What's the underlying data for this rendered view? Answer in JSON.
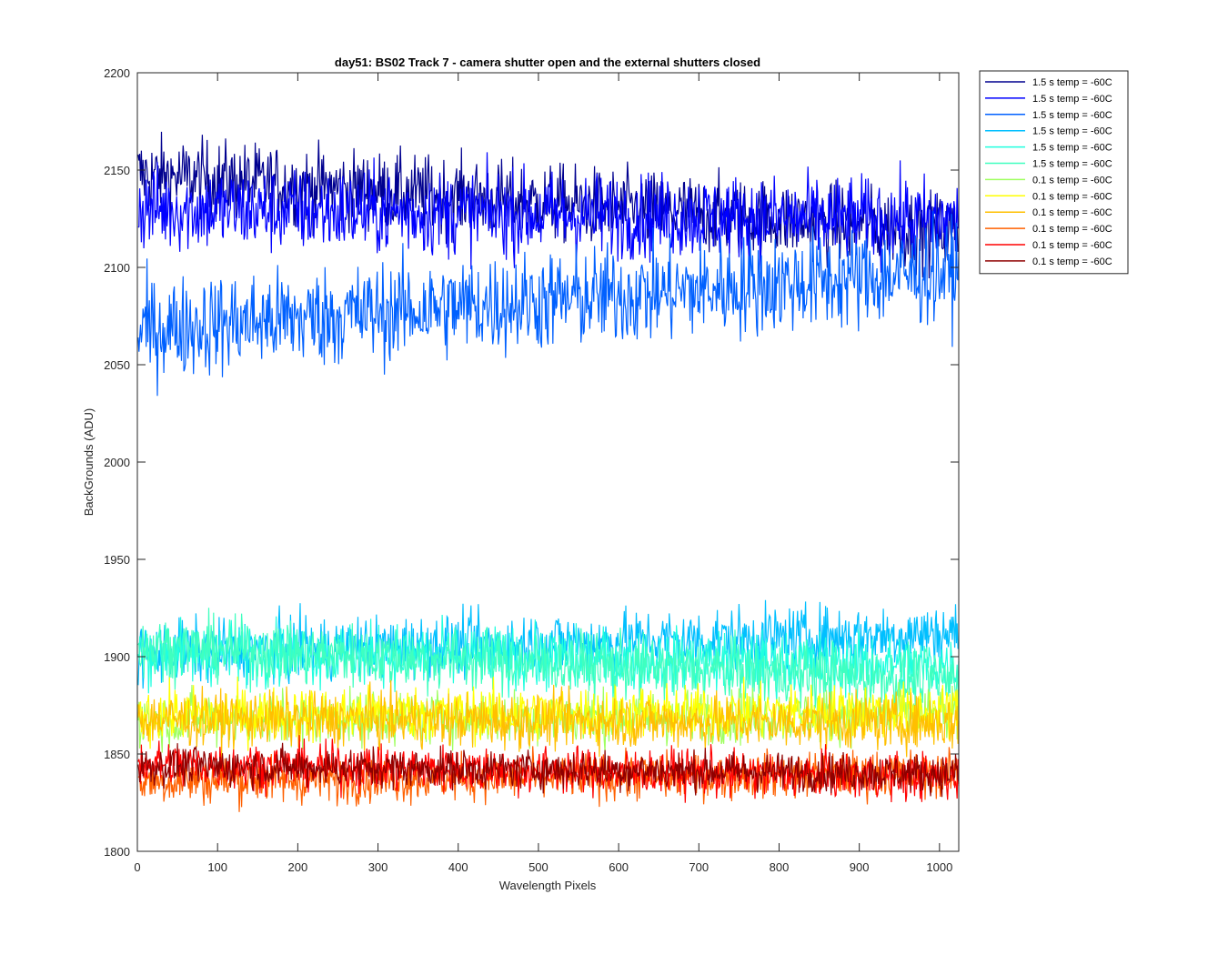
{
  "chart_data": {
    "type": "line",
    "title": "day51: BS02  Track 7 - camera shutter open and the external shutters closed",
    "xlabel": "Wavelength Pixels",
    "ylabel": "BackGrounds (ADU)",
    "xlim": [
      0,
      1024
    ],
    "ylim": [
      1800,
      2200
    ],
    "xticks": [
      0,
      100,
      200,
      300,
      400,
      500,
      600,
      700,
      800,
      900,
      1000
    ],
    "yticks": [
      1800,
      1850,
      1900,
      1950,
      2000,
      2050,
      2100,
      2150,
      2200
    ],
    "grid": false,
    "legend_position": "outside-top-right",
    "series": [
      {
        "name": "1.5 s temp = -60C",
        "color": "#00008f",
        "start": 2148,
        "end": 2118,
        "noise": 10
      },
      {
        "name": "1.5 s temp = -60C",
        "color": "#0000ff",
        "start": 2130,
        "end": 2124,
        "noise": 11
      },
      {
        "name": "1.5 s temp = -60C",
        "color": "#0060ff",
        "start": 2068,
        "end": 2098,
        "noise": 13
      },
      {
        "name": "1.5 s temp = -60C",
        "color": "#00bfff",
        "start": 1902,
        "end": 1912,
        "noise": 8
      },
      {
        "name": "1.5 s temp = -60C",
        "color": "#20ffdf",
        "start": 1903,
        "end": 1895,
        "noise": 8
      },
      {
        "name": "1.5 s temp = -60C",
        "color": "#40ffbf",
        "start": 1905,
        "end": 1888,
        "noise": 8
      },
      {
        "name": "0.1 s temp = -60C",
        "color": "#9fff60",
        "start": 1868,
        "end": 1870,
        "noise": 7
      },
      {
        "name": "0.1 s temp = -60C",
        "color": "#ffff00",
        "start": 1870,
        "end": 1872,
        "noise": 7
      },
      {
        "name": "0.1 s temp = -60C",
        "color": "#ffbf00",
        "start": 1868,
        "end": 1866,
        "noise": 7
      },
      {
        "name": "0.1 s temp = -60C",
        "color": "#ff6000",
        "start": 1836,
        "end": 1840,
        "noise": 6
      },
      {
        "name": "0.1 s temp = -60C",
        "color": "#ff0000",
        "start": 1845,
        "end": 1838,
        "noise": 6
      },
      {
        "name": "0.1 s temp = -60C",
        "color": "#8f0000",
        "start": 1844,
        "end": 1840,
        "noise": 5
      }
    ]
  }
}
